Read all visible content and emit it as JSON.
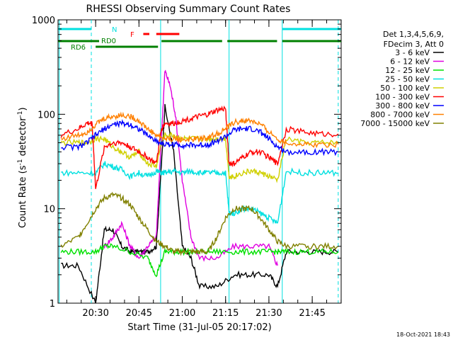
{
  "chart_data": {
    "type": "line",
    "title": "RHESSI Observing Summary Count Rates",
    "xlabel": "Start Time (31-Jul-05 20:17:02)",
    "ylabel": "Count Rate (s⁻¹ detector⁻¹)",
    "ylabel_main": "Count Rate (s",
    "ylabel_sup1": "-1",
    "ylabel_mid": " detector",
    "ylabel_sup2": "-1",
    "ylabel_end": ")",
    "footer": "18-Oct-2021 18:43",
    "y_scale": "log",
    "ylim": [
      1,
      1000
    ],
    "xlim_minutes": [
      20.283,
      21.917
    ],
    "xlim": [
      "20:17:02",
      "21:55:00"
    ],
    "x_ticks": [
      {
        "label": "20:30",
        "t": 20.5
      },
      {
        "label": "20:45",
        "t": 20.75
      },
      {
        "label": "21:00",
        "t": 21.0
      },
      {
        "label": "21:15",
        "t": 21.25
      },
      {
        "label": "21:30",
        "t": 21.5
      },
      {
        "label": "21:45",
        "t": 21.75
      }
    ],
    "y_ticks": [
      {
        "label": "1",
        "v": 1
      },
      {
        "label": "10",
        "v": 10
      },
      {
        "label": "100",
        "v": 100
      },
      {
        "label": "1000",
        "v": 1000
      }
    ],
    "legend_header": [
      "Det 1,3,4,5,6,9,",
      "FDecim 3, Att 0"
    ],
    "legend_placement": "right",
    "series": [
      {
        "name": "3 - 6 keV",
        "color": "#000000",
        "x": [
          20.3,
          20.4,
          20.5,
          20.55,
          20.6,
          20.65,
          20.7,
          20.75,
          20.8,
          20.85,
          20.88,
          20.9,
          20.95,
          21.0,
          21.05,
          21.1,
          21.2,
          21.3,
          21.4,
          21.5,
          21.55,
          21.6,
          21.7,
          21.8,
          21.9
        ],
        "y": [
          2.5,
          2.5,
          1.0,
          6,
          6,
          4,
          3.5,
          3.5,
          3.5,
          4,
          30,
          120,
          40,
          4,
          3,
          1.5,
          1.5,
          2,
          2,
          2,
          1.5,
          3.5,
          3.5,
          3.5,
          3.5
        ]
      },
      {
        "name": "6 - 12 keV",
        "color": "#e000e0",
        "x": [
          20.55,
          20.6,
          20.65,
          20.7,
          20.75,
          20.8,
          20.85,
          20.88,
          20.9,
          20.93,
          20.96,
          21.0,
          21.05,
          21.1,
          21.2,
          21.3,
          21.4,
          21.5,
          21.55
        ],
        "y": [
          4,
          5,
          7,
          4,
          3,
          4,
          5,
          60,
          290,
          200,
          100,
          20,
          5,
          3,
          3,
          4,
          4,
          4,
          2.5
        ]
      },
      {
        "name": "12 - 25 keV",
        "color": "#00e000",
        "x": [
          20.3,
          20.4,
          20.5,
          20.55,
          20.6,
          20.7,
          20.8,
          20.85,
          20.9,
          20.95,
          21.0,
          21.1,
          21.2,
          21.3,
          21.4,
          21.5,
          21.55,
          21.6,
          21.7,
          21.8,
          21.9
        ],
        "y": [
          3.5,
          3.5,
          3.5,
          4,
          4,
          3.5,
          3.0,
          2.0,
          3.5,
          3.5,
          3.5,
          3.5,
          3.5,
          3.5,
          3.5,
          3.5,
          3.5,
          3.5,
          3.5,
          3.5,
          3.5
        ]
      },
      {
        "name": "25 - 50 keV",
        "color": "#00e0e0",
        "x": [
          20.3,
          20.4,
          20.5,
          20.55,
          20.6,
          20.65,
          20.7,
          20.75,
          20.8,
          20.85,
          20.88,
          20.9,
          20.95,
          21.0,
          21.05,
          21.1,
          21.15,
          21.2,
          21.25,
          21.27,
          21.3,
          21.35,
          21.4,
          21.45,
          21.5,
          21.55,
          21.6,
          21.7,
          21.8,
          21.9
        ],
        "y": [
          24,
          24,
          24,
          30,
          28,
          26,
          22,
          24,
          22,
          25,
          24,
          24,
          25,
          24,
          25,
          24,
          24,
          24,
          24,
          9,
          9,
          10,
          10,
          9,
          8,
          7,
          25,
          24,
          24,
          24
        ]
      },
      {
        "name": "50 - 100 keV",
        "color": "#d0d000",
        "x": [
          20.3,
          20.4,
          20.45,
          20.5,
          20.55,
          20.6,
          20.65,
          20.7,
          20.75,
          20.8,
          20.85,
          20.88,
          20.9,
          20.95,
          21.0,
          21.05,
          21.1,
          21.15,
          21.2,
          21.25,
          21.27,
          21.3,
          21.35,
          21.4,
          21.45,
          21.5,
          21.55,
          21.6,
          21.7,
          21.8,
          21.9
        ],
        "y": [
          50,
          50,
          50,
          55,
          55,
          45,
          40,
          35,
          40,
          30,
          28,
          50,
          60,
          60,
          55,
          55,
          55,
          55,
          55,
          55,
          22,
          22,
          24,
          25,
          24,
          22,
          20,
          55,
          50,
          50,
          50
        ]
      },
      {
        "name": "100 - 300 keV",
        "color": "#ff0000",
        "x": [
          20.3,
          20.4,
          20.45,
          20.48,
          20.5,
          20.55,
          20.6,
          20.65,
          20.7,
          20.75,
          20.8,
          20.85,
          20.88,
          20.9,
          20.95,
          21.0,
          21.05,
          21.1,
          21.15,
          21.2,
          21.25,
          21.27,
          21.3,
          21.35,
          21.4,
          21.45,
          21.5,
          21.55,
          21.6,
          21.7,
          21.8,
          21.9
        ],
        "y": [
          60,
          70,
          80,
          80,
          16,
          45,
          50,
          50,
          45,
          40,
          35,
          30,
          70,
          80,
          80,
          85,
          90,
          95,
          100,
          110,
          115,
          30,
          30,
          35,
          40,
          40,
          35,
          30,
          70,
          65,
          62,
          62
        ]
      },
      {
        "name": "300 - 800 keV",
        "color": "#0000ff",
        "x": [
          20.3,
          20.4,
          20.45,
          20.5,
          20.55,
          20.6,
          20.65,
          20.7,
          20.75,
          20.8,
          20.85,
          20.9,
          20.95,
          21.0,
          21.05,
          21.1,
          21.15,
          21.2,
          21.25,
          21.3,
          21.35,
          21.4,
          21.45,
          21.5,
          21.55,
          21.6,
          21.7,
          21.8,
          21.9
        ],
        "y": [
          45,
          45,
          50,
          60,
          70,
          78,
          80,
          78,
          70,
          60,
          52,
          48,
          48,
          47,
          47,
          47,
          48,
          52,
          58,
          68,
          70,
          70,
          65,
          55,
          45,
          40,
          40,
          40,
          40
        ]
      },
      {
        "name": "800 - 7000 keV",
        "color": "#ff8000",
        "x": [
          20.3,
          20.4,
          20.45,
          20.5,
          20.55,
          20.6,
          20.65,
          20.7,
          20.75,
          20.8,
          20.85,
          20.9,
          20.95,
          21.0,
          21.05,
          21.1,
          21.15,
          21.2,
          21.25,
          21.3,
          21.35,
          21.4,
          21.45,
          21.5,
          21.55,
          21.6,
          21.7,
          21.8,
          21.9
        ],
        "y": [
          55,
          60,
          65,
          78,
          90,
          95,
          98,
          95,
          85,
          70,
          60,
          55,
          55,
          54,
          54,
          55,
          57,
          62,
          70,
          82,
          85,
          85,
          78,
          65,
          55,
          50,
          48,
          48,
          48
        ]
      },
      {
        "name": "7000 - 15000 keV",
        "color": "#808000",
        "x": [
          20.3,
          20.4,
          20.45,
          20.5,
          20.55,
          20.6,
          20.65,
          20.7,
          20.75,
          20.8,
          20.85,
          20.9,
          20.95,
          21.0,
          21.05,
          21.1,
          21.15,
          21.2,
          21.25,
          21.3,
          21.35,
          21.4,
          21.45,
          21.5,
          21.55,
          21.6,
          21.7,
          21.8,
          21.9
        ],
        "y": [
          4,
          5,
          7,
          10,
          13,
          14,
          13,
          11,
          8,
          6,
          4.5,
          4,
          3.5,
          3.5,
          3.5,
          3.5,
          3.5,
          5,
          8,
          10,
          10,
          10,
          8,
          6,
          4.5,
          4,
          4,
          4,
          4
        ]
      }
    ],
    "flag_bars": [
      {
        "label": "N",
        "color": "#00e0e0",
        "segments": [
          [
            20.283,
            20.475
          ],
          [
            21.577,
            21.917
          ]
        ]
      },
      {
        "label": "F",
        "color": "#ff0000",
        "segments": [
          [
            20.775,
            20.81
          ],
          [
            20.85,
            20.983
          ]
        ]
      },
      {
        "label": "RD0",
        "color": "#008000",
        "segments": [
          [
            20.283,
            20.52
          ],
          [
            20.88,
            21.23
          ],
          [
            21.26,
            21.547
          ],
          [
            21.577,
            21.917
          ]
        ]
      },
      {
        "label": "RD6",
        "color": "#008000",
        "segments": [
          [
            20.5,
            20.86
          ]
        ]
      }
    ],
    "vertical_markers": [
      {
        "t": 20.29,
        "style": "solid",
        "color": "#00e0e0"
      },
      {
        "t": 20.475,
        "style": "dashed",
        "color": "#00e0e0"
      },
      {
        "t": 20.875,
        "style": "solid",
        "color": "#00e0e0"
      },
      {
        "t": 21.27,
        "style": "solid",
        "color": "#00e0e0"
      },
      {
        "t": 21.577,
        "style": "solid",
        "color": "#00e0e0"
      },
      {
        "t": 21.9,
        "style": "dashed",
        "color": "#00e0e0"
      }
    ]
  }
}
